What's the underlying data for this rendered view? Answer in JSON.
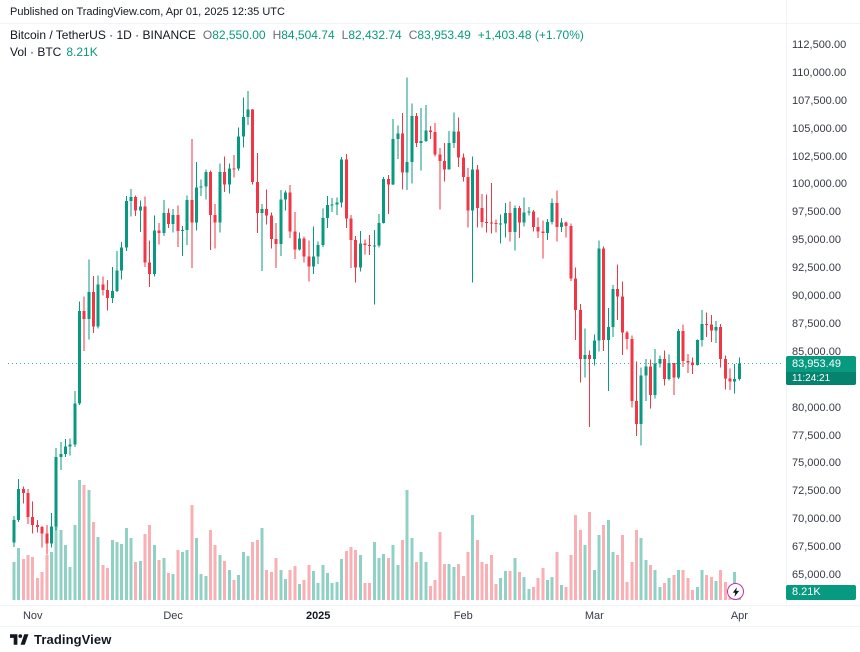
{
  "header": {
    "published_line": "Published on TradingView.com, Apr 01, 2025 12:35 UTC"
  },
  "legend": {
    "title": "Bitcoin / TetherUS · 1D · BINANCE",
    "o_label": "O",
    "o_value": "82,550.00",
    "h_label": "H",
    "h_value": "84,504.74",
    "l_label": "L",
    "l_value": "82,432.74",
    "c_label": "C",
    "c_value": "83,953.49",
    "change": "+1,403.48 (+1.70%)",
    "volume_label": "Vol · BTC",
    "volume_value": "8.21K"
  },
  "price_badge": {
    "price": "83,953.49",
    "countdown": "11:24:21"
  },
  "volume_badge": {
    "value": "8.21K"
  },
  "footer": {
    "brand": "TradingView"
  },
  "colors": {
    "up": "#089981",
    "down": "#f23645",
    "vol_up": "rgba(8,153,129,0.45)",
    "vol_down": "rgba(242,54,69,0.40)",
    "badge_bg": "#089981",
    "axis_text": "#363a45",
    "flash_ring": "#c22fb0"
  },
  "chart_data": {
    "type": "candlestick",
    "symbol": "Bitcoin / TetherUS",
    "exchange": "BINANCE",
    "interval": "1D",
    "start_date": "2024-10-28",
    "end_date": "2025-04-01",
    "last_close": 83953.49,
    "ylim": [
      63000,
      113500
    ],
    "volume_unit": "K BTC",
    "price_axis_labels": [
      "112,500.00",
      "110,000.00",
      "107,500.00",
      "105,000.00",
      "102,500.00",
      "100,000.00",
      "97,500.00",
      "95,000.00",
      "92,500.00",
      "90,000.00",
      "87,500.00",
      "85,000.00",
      "82,500.00",
      "80,000.00",
      "77,500.00",
      "75,000.00",
      "72,500.00",
      "70,000.00",
      "67,500.00",
      "65,000.00"
    ],
    "time_ticks": [
      {
        "label": "Nov",
        "index": 4
      },
      {
        "label": "Dec",
        "index": 34
      },
      {
        "label": "2025",
        "index": 65,
        "bold": true
      },
      {
        "label": "Feb",
        "index": 96
      },
      {
        "label": "Mar",
        "index": 124
      },
      {
        "label": "Apr",
        "index": 155
      }
    ],
    "columns": [
      "open",
      "high",
      "low",
      "close",
      "volume_kbtc"
    ],
    "candles": [
      [
        67929,
        70300,
        67500,
        69910,
        38
      ],
      [
        69910,
        73620,
        69750,
        72720,
        52
      ],
      [
        72720,
        72950,
        71400,
        72339,
        41
      ],
      [
        72339,
        72700,
        69590,
        70215,
        45
      ],
      [
        70215,
        71600,
        68740,
        69482,
        43
      ],
      [
        69482,
        69920,
        68820,
        69289,
        22
      ],
      [
        69289,
        69400,
        67478,
        68741,
        28
      ],
      [
        68741,
        69500,
        66835,
        67811,
        45
      ],
      [
        67811,
        70577,
        67476,
        69359,
        48
      ],
      [
        69359,
        76400,
        69000,
        75571,
        130
      ],
      [
        75571,
        76900,
        74416,
        75857,
        70
      ],
      [
        75857,
        77199,
        75555,
        76509,
        55
      ],
      [
        76509,
        77240,
        75714,
        76677,
        33
      ],
      [
        76677,
        81500,
        76490,
        80370,
        75
      ],
      [
        80370,
        89530,
        80216,
        88647,
        120
      ],
      [
        88647,
        89940,
        85072,
        87952,
        115
      ],
      [
        87952,
        93265,
        86127,
        90375,
        110
      ],
      [
        90375,
        91790,
        86668,
        87250,
        78
      ],
      [
        87250,
        91850,
        87072,
        91032,
        63
      ],
      [
        91032,
        91775,
        90056,
        90558,
        35
      ],
      [
        90558,
        91449,
        88722,
        89845,
        32
      ],
      [
        89845,
        92594,
        89376,
        90464,
        60
      ],
      [
        90464,
        94060,
        90350,
        92310,
        58
      ],
      [
        92310,
        94831,
        91500,
        94339,
        56
      ],
      [
        94339,
        98988,
        94040,
        98504,
        72
      ],
      [
        98504,
        99588,
        97122,
        98892,
        62
      ],
      [
        98892,
        99000,
        97172,
        97672,
        38
      ],
      [
        97672,
        98564,
        95734,
        98013,
        39
      ],
      [
        98013,
        98935,
        92600,
        93010,
        66
      ],
      [
        93010,
        94973,
        90791,
        91985,
        75
      ],
      [
        91985,
        97219,
        91772,
        95863,
        55
      ],
      [
        95863,
        96540,
        94640,
        95652,
        40
      ],
      [
        95652,
        98620,
        95364,
        97461,
        42
      ],
      [
        97461,
        97836,
        96110,
        96449,
        27
      ],
      [
        96449,
        97810,
        95712,
        97279,
        26
      ],
      [
        97279,
        98130,
        94395,
        95840,
        50
      ],
      [
        95840,
        96300,
        93578,
        95902,
        48
      ],
      [
        95902,
        99000,
        94587,
        98587,
        50
      ],
      [
        98587,
        104088,
        92510,
        96594,
        95
      ],
      [
        96594,
        102000,
        95866,
        99740,
        62
      ],
      [
        99740,
        100439,
        98966,
        99831,
        26
      ],
      [
        99831,
        101351,
        98657,
        101109,
        24
      ],
      [
        101109,
        101236,
        94150,
        97276,
        70
      ],
      [
        97276,
        98270,
        94256,
        96593,
        55
      ],
      [
        96593,
        101888,
        95689,
        101126,
        45
      ],
      [
        101126,
        102495,
        99311,
        100004,
        39
      ],
      [
        100004,
        101895,
        99205,
        101424,
        30
      ],
      [
        101424,
        102650,
        100609,
        101420,
        20
      ],
      [
        101420,
        105120,
        101234,
        104298,
        25
      ],
      [
        104298,
        107793,
        103333,
        106029,
        48
      ],
      [
        106029,
        108364,
        105321,
        106698,
        44
      ],
      [
        106698,
        106777,
        100000,
        100204,
        58
      ],
      [
        100204,
        102800,
        95672,
        97461,
        60
      ],
      [
        97461,
        98233,
        92232,
        97805,
        72
      ],
      [
        97805,
        99540,
        96416,
        97224,
        30
      ],
      [
        97224,
        97500,
        94250,
        95104,
        28
      ],
      [
        95104,
        96538,
        92520,
        94686,
        42
      ],
      [
        94686,
        99488,
        93569,
        98676,
        30
      ],
      [
        98676,
        99480,
        97674,
        99299,
        21
      ],
      [
        99299,
        99963,
        95199,
        95795,
        30
      ],
      [
        95795,
        97544,
        93310,
        94164,
        34
      ],
      [
        94164,
        95683,
        94066,
        95163,
        16
      ],
      [
        95163,
        95340,
        93009,
        93530,
        20
      ],
      [
        93530,
        94965,
        91317,
        92643,
        35
      ],
      [
        92643,
        96250,
        91965,
        93557,
        29
      ],
      [
        93557,
        94900,
        92888,
        94591,
        17
      ],
      [
        94591,
        97839,
        94392,
        96984,
        35
      ],
      [
        96984,
        98976,
        96100,
        98174,
        27
      ],
      [
        98174,
        98778,
        97514,
        98220,
        17
      ],
      [
        98220,
        98836,
        97276,
        98363,
        18
      ],
      [
        98363,
        102480,
        97920,
        102235,
        41
      ],
      [
        102235,
        102724,
        96111,
        96954,
        49
      ],
      [
        96954,
        97250,
        92500,
        95043,
        53
      ],
      [
        95043,
        95382,
        91203,
        92552,
        50
      ],
      [
        92552,
        95836,
        92206,
        94701,
        45
      ],
      [
        94701,
        95050,
        93711,
        94566,
        17
      ],
      [
        94566,
        95450,
        93673,
        94488,
        17
      ],
      [
        94488,
        95940,
        89256,
        94516,
        58
      ],
      [
        94516,
        97371,
        94346,
        96534,
        42
      ],
      [
        96534,
        100690,
        96500,
        100504,
        46
      ],
      [
        100504,
        100866,
        97335,
        99987,
        42
      ],
      [
        99987,
        105865,
        99950,
        104077,
        55
      ],
      [
        104077,
        105280,
        102266,
        104556,
        35
      ],
      [
        104556,
        106422,
        99550,
        101089,
        60
      ],
      [
        101089,
        109588,
        99525,
        102016,
        110
      ],
      [
        102016,
        107240,
        100100,
        106146,
        62
      ],
      [
        106146,
        106394,
        103339,
        103706,
        38
      ],
      [
        103706,
        106850,
        101252,
        103910,
        48
      ],
      [
        103910,
        107110,
        103797,
        104819,
        38
      ],
      [
        104819,
        105240,
        104077,
        104714,
        14
      ],
      [
        104714,
        105494,
        102500,
        102682,
        20
      ],
      [
        102682,
        103260,
        97777,
        102082,
        68
      ],
      [
        102082,
        103736,
        100272,
        101335,
        36
      ],
      [
        101335,
        104782,
        101328,
        103703,
        36
      ],
      [
        103703,
        106457,
        103278,
        104735,
        33
      ],
      [
        104735,
        106012,
        101560,
        102405,
        36
      ],
      [
        102405,
        102783,
        100279,
        100655,
        24
      ],
      [
        100655,
        101458,
        96150,
        97688,
        48
      ],
      [
        97688,
        102500,
        91231,
        101328,
        85
      ],
      [
        101328,
        101747,
        96150,
        97871,
        60
      ],
      [
        97871,
        99149,
        96155,
        96615,
        38
      ],
      [
        96615,
        99120,
        95676,
        96593,
        36
      ],
      [
        96593,
        100150,
        95617,
        96529,
        45
      ],
      [
        96529,
        96880,
        95688,
        96482,
        16
      ],
      [
        96482,
        97323,
        94713,
        96500,
        22
      ],
      [
        96500,
        98345,
        95256,
        97437,
        29
      ],
      [
        97437,
        98478,
        94876,
        95747,
        29
      ],
      [
        95747,
        98119,
        94088,
        97885,
        42
      ],
      [
        97885,
        98083,
        95217,
        96608,
        28
      ],
      [
        96608,
        98826,
        96252,
        97508,
        23
      ],
      [
        97508,
        97972,
        97224,
        97570,
        11
      ],
      [
        97570,
        97704,
        95772,
        96175,
        13
      ],
      [
        96175,
        97046,
        95217,
        95773,
        22
      ],
      [
        95773,
        96753,
        93388,
        95639,
        32
      ],
      [
        95639,
        96899,
        95029,
        96635,
        20
      ],
      [
        96635,
        98734,
        96405,
        98333,
        23
      ],
      [
        98333,
        99475,
        94871,
        96181,
        48
      ],
      [
        96181,
        96980,
        95751,
        96577,
        15
      ],
      [
        96577,
        96676,
        95267,
        96273,
        13
      ],
      [
        96273,
        96500,
        91349,
        91552,
        45
      ],
      [
        91552,
        92540,
        86050,
        88736,
        85
      ],
      [
        88736,
        89286,
        82256,
        84347,
        70
      ],
      [
        84347,
        87078,
        82716,
        84709,
        55
      ],
      [
        84709,
        85120,
        78248,
        84373,
        88
      ],
      [
        84373,
        86558,
        83794,
        86031,
        30
      ],
      [
        86031,
        95000,
        85040,
        94261,
        65
      ],
      [
        94261,
        94422,
        85081,
        86065,
        75
      ],
      [
        86065,
        88911,
        81500,
        87222,
        80
      ],
      [
        87222,
        91000,
        86334,
        90623,
        48
      ],
      [
        90623,
        92810,
        87836,
        89961,
        45
      ],
      [
        89961,
        91283,
        84717,
        86742,
        65
      ],
      [
        86742,
        86847,
        85219,
        86154,
        18
      ],
      [
        86154,
        86471,
        80000,
        80601,
        38
      ],
      [
        80601,
        84123,
        77459,
        78532,
        70
      ],
      [
        78532,
        83617,
        76606,
        82862,
        62
      ],
      [
        82862,
        84358,
        80607,
        83680,
        40
      ],
      [
        83680,
        84336,
        79931,
        81115,
        35
      ],
      [
        81115,
        85270,
        80818,
        83969,
        30
      ],
      [
        83969,
        84676,
        83618,
        84343,
        13
      ],
      [
        84343,
        85117,
        82000,
        82579,
        17
      ],
      [
        82579,
        84756,
        82451,
        84016,
        22
      ],
      [
        84016,
        84021,
        81134,
        82718,
        25
      ],
      [
        82718,
        87041,
        82585,
        86854,
        30
      ],
      [
        86854,
        87453,
        83649,
        84167,
        30
      ],
      [
        84167,
        84792,
        83113,
        84043,
        22
      ],
      [
        84043,
        84497,
        83026,
        83832,
        10
      ],
      [
        83832,
        86092,
        83790,
        86054,
        13
      ],
      [
        86054,
        88765,
        85495,
        87498,
        30
      ],
      [
        87498,
        88543,
        86322,
        87471,
        25
      ],
      [
        87471,
        88287,
        85861,
        86900,
        23
      ],
      [
        86900,
        87786,
        85811,
        87227,
        19
      ],
      [
        87227,
        87489,
        83600,
        84359,
        30
      ],
      [
        84359,
        84679,
        81644,
        82597,
        18
      ],
      [
        82597,
        83510,
        81562,
        82334,
        14
      ],
      [
        82334,
        83911,
        81278,
        82550,
        28
      ],
      [
        82550,
        84504.74,
        82432.74,
        83953.49,
        8.21
      ]
    ]
  }
}
